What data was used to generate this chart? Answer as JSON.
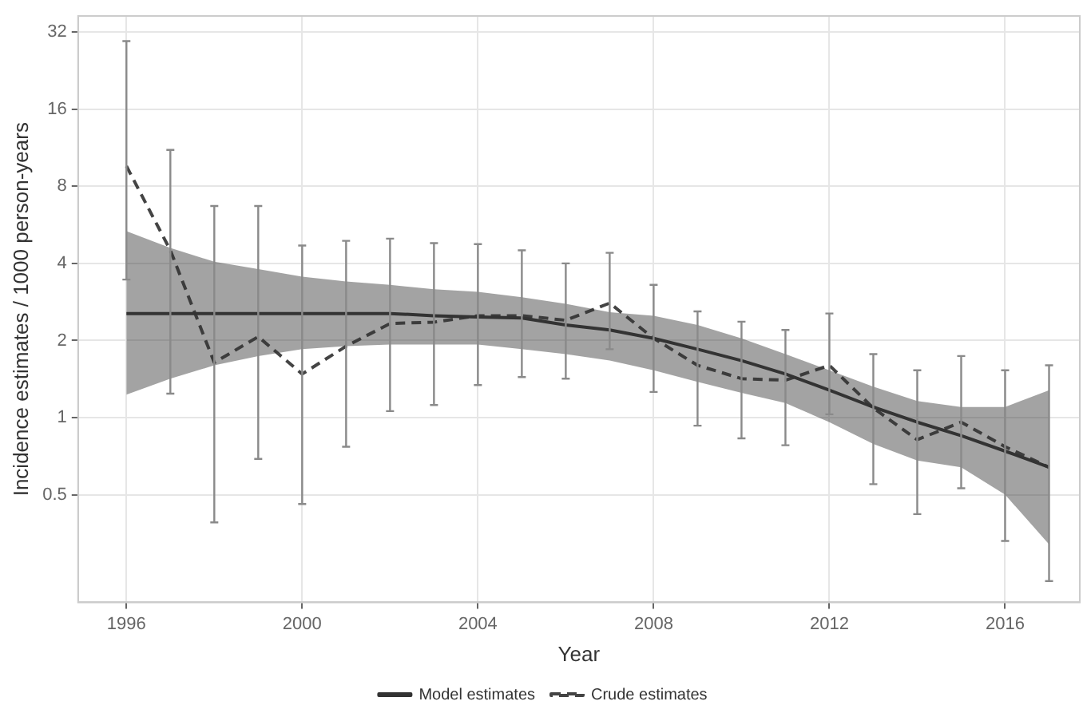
{
  "chart_data": {
    "type": "line",
    "xlabel": "Year",
    "ylabel": "Incidence estimates / 1000 person-years",
    "log": true,
    "grid": true,
    "legend": "bottom",
    "marker": "none",
    "x": [
      1996,
      1997,
      1998,
      1999,
      2000,
      2001,
      2002,
      2003,
      2004,
      2005,
      2006,
      2007,
      2008,
      2009,
      2010,
      2011,
      2012,
      2013,
      2014,
      2015,
      2016,
      2017
    ],
    "xlim": [
      1994.9,
      2017.7
    ],
    "xticks": [
      1996,
      2000,
      2004,
      2008,
      2012,
      2016
    ],
    "ylim": [
      0.19,
      37
    ],
    "yticks": [
      0.5,
      1,
      2,
      4,
      8,
      16,
      32
    ],
    "series": [
      {
        "name": "Model estimates",
        "type": "line",
        "color": "#333333",
        "line_style": "solid",
        "values": [
          2.55,
          2.55,
          2.55,
          2.55,
          2.55,
          2.55,
          2.55,
          2.5,
          2.47,
          2.45,
          2.3,
          2.2,
          2.04,
          1.85,
          1.67,
          1.48,
          1.28,
          1.1,
          0.96,
          0.85,
          0.74,
          0.64
        ],
        "lower": [
          1.23,
          1.42,
          1.6,
          1.74,
          1.85,
          1.9,
          1.93,
          1.93,
          1.93,
          1.85,
          1.77,
          1.67,
          1.53,
          1.38,
          1.25,
          1.14,
          0.96,
          0.79,
          0.68,
          0.64,
          0.5,
          0.32
        ],
        "upper": [
          5.35,
          4.6,
          4.06,
          3.8,
          3.55,
          3.4,
          3.3,
          3.17,
          3.1,
          2.95,
          2.78,
          2.58,
          2.5,
          2.3,
          2.04,
          1.77,
          1.53,
          1.32,
          1.16,
          1.1,
          1.1,
          1.28
        ]
      },
      {
        "name": "Crude estimates",
        "type": "line",
        "color": "#444444",
        "line_style": "dashed",
        "values": [
          9.6,
          4.5,
          1.64,
          2.07,
          1.48,
          1.9,
          2.33,
          2.36,
          2.5,
          2.5,
          2.4,
          2.8,
          2.04,
          1.6,
          1.42,
          1.4,
          1.6,
          1.09,
          0.82,
          0.96,
          0.77,
          0.64
        ],
        "errors": [
          [
            3.46,
            29.5
          ],
          [
            1.24,
            11.1
          ],
          [
            0.39,
            6.7
          ],
          [
            0.69,
            6.7
          ],
          [
            0.46,
            4.7
          ],
          [
            0.77,
            4.9
          ],
          [
            1.06,
            5.0
          ],
          [
            1.12,
            4.8
          ],
          [
            1.34,
            4.76
          ],
          [
            1.44,
            4.5
          ],
          [
            1.42,
            4.0
          ],
          [
            1.85,
            4.4
          ],
          [
            1.26,
            3.3
          ],
          [
            0.93,
            2.6
          ],
          [
            0.83,
            2.37
          ],
          [
            0.78,
            2.2
          ],
          [
            1.03,
            2.55
          ],
          [
            0.55,
            1.77
          ],
          [
            0.42,
            1.53
          ],
          [
            0.53,
            1.74
          ],
          [
            0.33,
            1.53
          ],
          [
            0.23,
            1.6
          ]
        ]
      }
    ]
  }
}
